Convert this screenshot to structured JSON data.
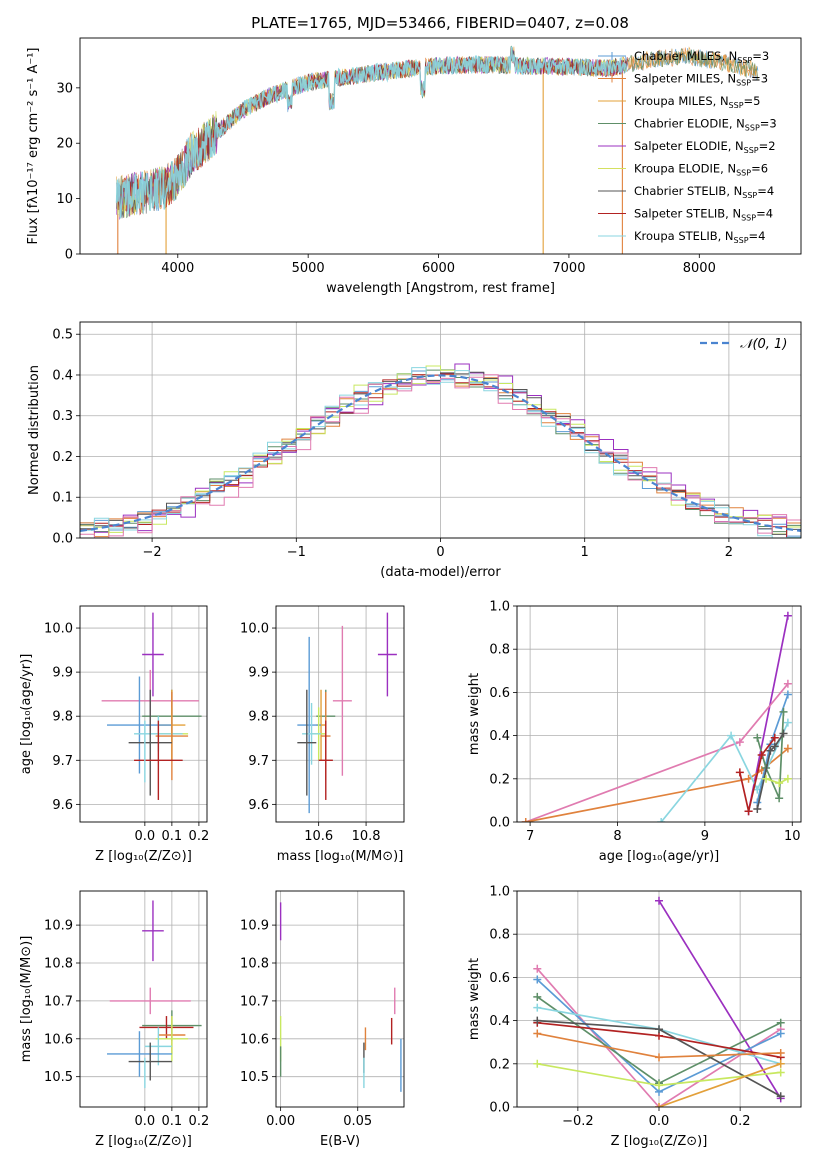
{
  "figure_title": "PLATE=1765, MJD=53466, FIBERID=0407, z=0.08",
  "colors": {
    "cm": "#5B9BD5",
    "sm": "#E0823D",
    "km": "#E3A03A",
    "ce": "#5E8F68",
    "se": "#9B30C0",
    "ke": "#D4E060",
    "cs": "#555555",
    "ss": "#B22222",
    "ks": "#8AD6E0",
    "pink": "#E07BB0",
    "yellowgreen": "#C8E860",
    "gaussian": "#4A84D0"
  },
  "chart_data": [
    {
      "id": "spectrum",
      "type": "line",
      "title": "PLATE=1765, MJD=53466, FIBERID=0407, z=0.08",
      "xlabel": "wavelength [Angstrom, rest frame]",
      "ylabel": "Flux [fλ10⁻¹⁷ erg cm⁻² s⁻¹ A⁻¹]",
      "xlim": [
        3250,
        8780
      ],
      "ylim": [
        0,
        39
      ],
      "xticks": [
        4000,
        5000,
        6000,
        7000,
        8000
      ],
      "yticks": [
        0,
        10,
        20,
        30
      ],
      "grid": false,
      "legend_position": "right",
      "continuum": {
        "x": [
          3530,
          3700,
          3900,
          4000,
          4100,
          4300,
          4500,
          4700,
          5000,
          5300,
          5600,
          6000,
          6300,
          6600,
          7000,
          7300,
          7600,
          7900,
          8200,
          8450
        ],
        "y": [
          10,
          11,
          12,
          14,
          18,
          22,
          26,
          28.5,
          31,
          32,
          33,
          34,
          34.2,
          34,
          33.8,
          33.5,
          35,
          35.8,
          34.5,
          33
        ]
      },
      "series": [
        {
          "name": "Chabrier MILES, N_SSP=3",
          "label": "Chabrier MILES, N",
          "nssp": "3",
          "color": "#5B9BD5",
          "marker": "+"
        },
        {
          "name": "Salpeter MILES, N_SSP=3",
          "label": "Salpeter MILES, N",
          "nssp": "3",
          "color": "#E0823D",
          "marker": "+"
        },
        {
          "name": "Kroupa MILES, N_SSP=5",
          "label": "Kroupa MILES, N",
          "nssp": "5",
          "color": "#E3A03A",
          "marker": ""
        },
        {
          "name": "Chabrier ELODIE, N_SSP=3",
          "label": "Chabrier ELODIE, N",
          "nssp": "3",
          "color": "#5E8F68",
          "marker": ""
        },
        {
          "name": "Salpeter ELODIE, N_SSP=2",
          "label": "Salpeter ELODIE, N",
          "nssp": "2",
          "color": "#9B30C0",
          "marker": ""
        },
        {
          "name": "Kroupa ELODIE, N_SSP=6",
          "label": "Kroupa ELODIE, N",
          "nssp": "6",
          "color": "#D4E060",
          "marker": ""
        },
        {
          "name": "Chabrier STELIB, N_SSP=4",
          "label": "Chabrier STELIB, N",
          "nssp": "4",
          "color": "#555555",
          "marker": ""
        },
        {
          "name": "Salpeter STELIB, N_SSP=4",
          "label": "Salpeter STELIB, N",
          "nssp": "4",
          "color": "#B22222",
          "marker": ""
        },
        {
          "name": "Kroupa STELIB, N_SSP=4",
          "label": "Kroupa STELIB, N",
          "nssp": "4",
          "color": "#8AD6E0",
          "marker": ""
        }
      ],
      "nssp_sub": "SSP"
    },
    {
      "id": "residuals",
      "type": "line",
      "xlabel": "(data-model)/error",
      "ylabel": "Normed distribution",
      "xlim": [
        -2.5,
        2.5
      ],
      "ylim": [
        0,
        0.53
      ],
      "xticks": [
        -2,
        -1,
        0,
        1,
        2
      ],
      "xticklabels": [
        "−2",
        "−1",
        "0",
        "1",
        "2"
      ],
      "yticks": [
        0.0,
        0.1,
        0.2,
        0.3,
        0.4,
        0.5
      ],
      "yticklabels": [
        "0.0",
        "0.1",
        "0.2",
        "0.3",
        "0.4",
        "0.5"
      ],
      "grid": true,
      "legend_position": "top-right",
      "legend_label": "𝒩(0, 1)",
      "bin_width": 0.1,
      "hist_series": [
        {
          "color": "#5B9BD5",
          "peak_offset": 0.0,
          "noise": 0.02
        },
        {
          "color": "#E0823D",
          "peak_offset": 0.02,
          "noise": 0.025
        },
        {
          "color": "#5E8F68",
          "peak_offset": -0.03,
          "noise": 0.02
        },
        {
          "color": "#9B30C0",
          "peak_offset": 0.05,
          "noise": 0.03
        },
        {
          "color": "#C8E860",
          "peak_offset": -0.02,
          "noise": 0.03
        },
        {
          "color": "#555555",
          "peak_offset": 0.01,
          "noise": 0.02
        },
        {
          "color": "#B22222",
          "peak_offset": 0.0,
          "noise": 0.02
        },
        {
          "color": "#8AD6E0",
          "peak_offset": -0.04,
          "noise": 0.025
        },
        {
          "color": "#E07BB0",
          "peak_offset": 0.03,
          "noise": 0.035
        }
      ]
    },
    {
      "id": "age_vs_Z",
      "type": "scatter",
      "xlabel": "Z [log₁₀(Z/Z⊙)]",
      "ylabel": "age  [log₁₀(age/yr)]",
      "xlim": [
        -0.24,
        0.23
      ],
      "ylim": [
        9.56,
        10.05
      ],
      "xticks": [
        0.0,
        0.1,
        0.2
      ],
      "xticklabels": [
        "0.0",
        "0.1",
        "0.2"
      ],
      "yticks": [
        9.6,
        9.7,
        9.8,
        9.9,
        10.0
      ],
      "yticklabels": [
        "9.6",
        "9.7",
        "9.8",
        "9.9",
        "10.0"
      ],
      "grid": true,
      "points": [
        {
          "x": 0.03,
          "y": 9.94,
          "xerr": 0.04,
          "yerr": 0.095,
          "color": "#9B30C0"
        },
        {
          "x": 0.02,
          "y": 9.835,
          "xerr": 0.18,
          "yerr": 0.07,
          "color": "#E07BB0"
        },
        {
          "x": 0.1,
          "y": 9.8,
          "xerr": 0.11,
          "yerr": 0.06,
          "color": "#5E8F68"
        },
        {
          "x": 0.1,
          "y": 9.78,
          "xerr": 0.05,
          "yerr": 0.08,
          "color": "#E3A03A"
        },
        {
          "x": -0.02,
          "y": 9.78,
          "xerr": 0.12,
          "yerr": 0.11,
          "color": "#5B9BD5"
        },
        {
          "x": 0.1,
          "y": 9.76,
          "xerr": 0.06,
          "yerr": 0.06,
          "color": "#C8E860"
        },
        {
          "x": 0.05,
          "y": 9.76,
          "xerr": 0.09,
          "yerr": 0.04,
          "color": "#8AD6E0"
        },
        {
          "x": 0.1,
          "y": 9.755,
          "xerr": 0.06,
          "yerr": 0.1,
          "color": "#E0823D"
        },
        {
          "x": 0.02,
          "y": 9.74,
          "xerr": 0.08,
          "yerr": 0.12,
          "color": "#555555"
        },
        {
          "x": 0.05,
          "y": 9.7,
          "xerr": 0.09,
          "yerr": 0.09,
          "color": "#B22222"
        },
        {
          "x": 0.0,
          "y": 9.72,
          "xerr": 0.0,
          "yerr": 0.07,
          "color": "#8AD6E0"
        }
      ]
    },
    {
      "id": "age_vs_mass",
      "type": "scatter",
      "xlabel": "mass [log₁₀(M/M⊙)]",
      "ylabel": "",
      "xlim": [
        10.42,
        10.96
      ],
      "ylim": [
        9.56,
        10.05
      ],
      "xticks": [
        10.6,
        10.8
      ],
      "xticklabels": [
        "10.6",
        "10.8"
      ],
      "yticks": [
        9.6,
        9.7,
        9.8,
        9.9,
        10.0
      ],
      "yticklabels": [
        "9.6",
        "9.7",
        "9.8",
        "9.9",
        "10.0"
      ],
      "grid": true,
      "points": [
        {
          "x": 10.89,
          "y": 9.94,
          "xerr": 0.04,
          "yerr": 0.095,
          "color": "#9B30C0"
        },
        {
          "x": 10.7,
          "y": 9.835,
          "xerr": 0.04,
          "yerr": 0.17,
          "color": "#E07BB0"
        },
        {
          "x": 10.63,
          "y": 9.8,
          "xerr": 0.04,
          "yerr": 0.06,
          "color": "#5E8F68"
        },
        {
          "x": 10.61,
          "y": 9.78,
          "xerr": 0.02,
          "yerr": 0.08,
          "color": "#E3A03A"
        },
        {
          "x": 10.56,
          "y": 9.78,
          "xerr": 0.05,
          "yerr": 0.2,
          "color": "#5B9BD5"
        },
        {
          "x": 10.6,
          "y": 9.76,
          "xerr": 0.03,
          "yerr": 0.06,
          "color": "#C8E860"
        },
        {
          "x": 10.57,
          "y": 9.76,
          "xerr": 0.04,
          "yerr": 0.07,
          "color": "#8AD6E0"
        },
        {
          "x": 10.63,
          "y": 9.755,
          "xerr": 0.02,
          "yerr": 0.1,
          "color": "#E0823D"
        },
        {
          "x": 10.55,
          "y": 9.74,
          "xerr": 0.04,
          "yerr": 0.12,
          "color": "#555555"
        },
        {
          "x": 10.63,
          "y": 9.7,
          "xerr": 0.03,
          "yerr": 0.09,
          "color": "#B22222"
        }
      ]
    },
    {
      "id": "massweight_vs_age",
      "type": "line",
      "xlabel": "age  [log₁₀(age/yr)]",
      "ylabel": "mass weight",
      "xlim": [
        6.85,
        10.1
      ],
      "ylim": [
        0,
        1
      ],
      "xticks": [
        7,
        8,
        9,
        10
      ],
      "xticklabels": [
        "7",
        "8",
        "9",
        "10"
      ],
      "yticks": [
        0.0,
        0.2,
        0.4,
        0.6,
        0.8,
        1.0
      ],
      "yticklabels": [
        "0.0",
        "0.2",
        "0.4",
        "0.6",
        "0.8",
        "1.0"
      ],
      "grid": true,
      "series": [
        {
          "color": "#9B30C0",
          "x": [
            9.5,
            9.95
          ],
          "y": [
            0.05,
            0.955
          ]
        },
        {
          "color": "#E07BB0",
          "x": [
            6.95,
            9.4,
            9.95
          ],
          "y": [
            0.0,
            0.37,
            0.64
          ]
        },
        {
          "color": "#E0823D",
          "x": [
            6.95,
            9.5,
            9.65,
            9.95
          ],
          "y": [
            0.0,
            0.2,
            0.24,
            0.34
          ]
        },
        {
          "color": "#8AD6E0",
          "x": [
            8.5,
            9.3,
            9.6,
            9.95
          ],
          "y": [
            0.0,
            0.4,
            0.15,
            0.46
          ]
        },
        {
          "color": "#5B9BD5",
          "x": [
            9.6,
            9.75,
            9.95
          ],
          "y": [
            0.09,
            0.36,
            0.59
          ]
        },
        {
          "color": "#5E8F68",
          "x": [
            9.6,
            9.7,
            9.85,
            9.9
          ],
          "y": [
            0.39,
            0.25,
            0.11,
            0.51
          ]
        },
        {
          "color": "#B22222",
          "x": [
            9.4,
            9.5,
            9.65,
            9.8
          ],
          "y": [
            0.23,
            0.05,
            0.31,
            0.39
          ]
        },
        {
          "color": "#555555",
          "x": [
            9.6,
            9.75,
            9.8,
            9.9
          ],
          "y": [
            0.06,
            0.33,
            0.35,
            0.41
          ]
        },
        {
          "color": "#C8E860",
          "x": [
            9.7,
            9.85,
            9.95
          ],
          "y": [
            0.2,
            0.18,
            0.2
          ]
        }
      ]
    },
    {
      "id": "mass_vs_Z",
      "type": "scatter",
      "xlabel": "Z [log₁₀(Z/Z⊙)]",
      "ylabel": "mass [log₁₀(M/M⊙)]",
      "xlim": [
        -0.24,
        0.23
      ],
      "ylim": [
        10.42,
        10.99
      ],
      "xticks": [
        0.0,
        0.1,
        0.2
      ],
      "xticklabels": [
        "0.0",
        "0.1",
        "0.2"
      ],
      "yticks": [
        10.5,
        10.6,
        10.7,
        10.8,
        10.9
      ],
      "yticklabels": [
        "10.5",
        "10.6",
        "10.7",
        "10.8",
        "10.9"
      ],
      "grid": true,
      "points": [
        {
          "x": 0.03,
          "y": 10.885,
          "xerr": 0.04,
          "yerr": 0.08,
          "color": "#9B30C0"
        },
        {
          "x": 0.02,
          "y": 10.7,
          "xerr": 0.15,
          "yerr": 0.035,
          "color": "#E07BB0"
        },
        {
          "x": 0.1,
          "y": 10.635,
          "xerr": 0.11,
          "yerr": 0.04,
          "color": "#5E8F68"
        },
        {
          "x": 0.08,
          "y": 10.63,
          "xerr": 0.1,
          "yerr": 0.03,
          "color": "#B22222"
        },
        {
          "x": 0.1,
          "y": 10.61,
          "xerr": 0.05,
          "yerr": 0.05,
          "color": "#E0823D"
        },
        {
          "x": 0.1,
          "y": 10.6,
          "xerr": 0.06,
          "yerr": 0.06,
          "color": "#C8E860"
        },
        {
          "x": 0.05,
          "y": 10.58,
          "xerr": 0.05,
          "yerr": 0.05,
          "color": "#8AD6E0"
        },
        {
          "x": -0.02,
          "y": 10.56,
          "xerr": 0.12,
          "yerr": 0.06,
          "color": "#5B9BD5"
        },
        {
          "x": 0.02,
          "y": 10.54,
          "xerr": 0.08,
          "yerr": 0.05,
          "color": "#555555"
        },
        {
          "x": 0.0,
          "y": 10.51,
          "xerr": 0.0,
          "yerr": 0.04,
          "color": "#8AD6E0"
        }
      ]
    },
    {
      "id": "mass_vs_EBV",
      "type": "scatter",
      "xlabel": "E(B-V)",
      "ylabel": "",
      "xlim": [
        -0.003,
        0.08
      ],
      "ylim": [
        10.42,
        10.99
      ],
      "xticks": [
        0.0,
        0.05
      ],
      "xticklabels": [
        "0.00",
        "0.05"
      ],
      "yticks": [
        10.5,
        10.6,
        10.7,
        10.8,
        10.9
      ],
      "yticklabels": [
        "10.5",
        "10.6",
        "10.7",
        "10.8",
        "10.9"
      ],
      "grid": true,
      "points": [
        {
          "x": 0.0,
          "y": 10.91,
          "xerr": 0,
          "yerr": 0.05,
          "color": "#9B30C0"
        },
        {
          "x": 0.0,
          "y": 10.6,
          "xerr": 0,
          "yerr": 0.06,
          "color": "#C8E860"
        },
        {
          "x": 0.0,
          "y": 10.54,
          "xerr": 0,
          "yerr": 0.04,
          "color": "#5E8F68"
        },
        {
          "x": 0.055,
          "y": 10.6,
          "xerr": 0,
          "yerr": 0.03,
          "color": "#E0823D"
        },
        {
          "x": 0.054,
          "y": 10.55,
          "xerr": 0,
          "yerr": 0.04,
          "color": "#555555"
        },
        {
          "x": 0.054,
          "y": 10.51,
          "xerr": 0,
          "yerr": 0.04,
          "color": "#8AD6E0"
        },
        {
          "x": 0.072,
          "y": 10.62,
          "xerr": 0,
          "yerr": 0.035,
          "color": "#B22222"
        },
        {
          "x": 0.074,
          "y": 10.7,
          "xerr": 0,
          "yerr": 0.035,
          "color": "#E07BB0"
        },
        {
          "x": 0.078,
          "y": 10.53,
          "xerr": 0,
          "yerr": 0.07,
          "color": "#5B9BD5"
        }
      ]
    },
    {
      "id": "massweight_vs_Z",
      "type": "line",
      "xlabel": "Z [log₁₀(Z/Z⊙)]",
      "ylabel": "mass weight",
      "xlim": [
        -0.35,
        0.35
      ],
      "ylim": [
        0,
        1
      ],
      "xticks": [
        -0.2,
        0.0,
        0.2
      ],
      "xticklabels": [
        "−0.2",
        "0.0",
        "0.2"
      ],
      "yticks": [
        0.0,
        0.2,
        0.4,
        0.6,
        0.8,
        1.0
      ],
      "yticklabels": [
        "0.0",
        "0.2",
        "0.4",
        "0.6",
        "0.8",
        "1.0"
      ],
      "grid": true,
      "series": [
        {
          "color": "#9B30C0",
          "x": [
            0.0,
            0.3
          ],
          "y": [
            0.955,
            0.04
          ]
        },
        {
          "color": "#E07BB0",
          "x": [
            -0.3,
            0.0,
            0.3
          ],
          "y": [
            0.64,
            0.0,
            0.36
          ]
        },
        {
          "color": "#5B9BD5",
          "x": [
            -0.3,
            0.0,
            0.3
          ],
          "y": [
            0.59,
            0.07,
            0.34
          ]
        },
        {
          "color": "#5E8F68",
          "x": [
            -0.3,
            0.0,
            0.3
          ],
          "y": [
            0.51,
            0.11,
            0.39
          ]
        },
        {
          "color": "#8AD6E0",
          "x": [
            -0.3,
            0.0,
            0.3
          ],
          "y": [
            0.46,
            0.36,
            0.2
          ]
        },
        {
          "color": "#B22222",
          "x": [
            -0.3,
            0.0,
            0.3
          ],
          "y": [
            0.39,
            0.33,
            0.23
          ]
        },
        {
          "color": "#555555",
          "x": [
            -0.3,
            0.0,
            0.3
          ],
          "y": [
            0.4,
            0.36,
            0.05
          ]
        },
        {
          "color": "#E0823D",
          "x": [
            -0.3,
            0.0,
            0.3
          ],
          "y": [
            0.34,
            0.23,
            0.25
          ]
        },
        {
          "color": "#C8E860",
          "x": [
            -0.3,
            0.0,
            0.3
          ],
          "y": [
            0.2,
            0.1,
            0.16
          ]
        },
        {
          "color": "#E3A03A",
          "x": [
            0.0,
            0.3
          ],
          "y": [
            0.0,
            0.2
          ]
        }
      ]
    }
  ]
}
